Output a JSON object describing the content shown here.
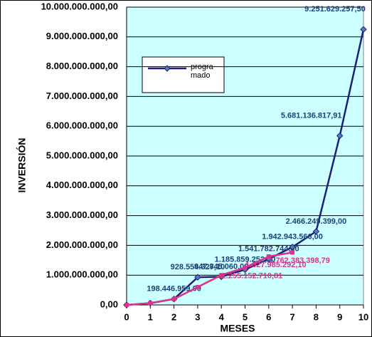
{
  "chart_data": {
    "type": "line",
    "x_label": "MESES",
    "y_label": "INVERSIÓN",
    "x": [
      0,
      1,
      2,
      3,
      4,
      5,
      6,
      7,
      8,
      9,
      10
    ],
    "xlim": [
      0,
      10
    ],
    "xticks": [
      0,
      1,
      2,
      3,
      4,
      5,
      6,
      7,
      8,
      9,
      10
    ],
    "ylim": [
      0,
      10000000000
    ],
    "yticks": [
      {
        "value": 0,
        "label": "0,00"
      },
      {
        "value": 1000000000,
        "label": "1.000.000.000,00"
      },
      {
        "value": 2000000000,
        "label": "2.000.000.000,00"
      },
      {
        "value": 3000000000,
        "label": "3.000.000.000,00"
      },
      {
        "value": 4000000000,
        "label": "4.000.000.000,00"
      },
      {
        "value": 5000000000,
        "label": "5.000.000.000,00"
      },
      {
        "value": 6000000000,
        "label": "6.000.000.000,00"
      },
      {
        "value": 7000000000,
        "label": "7.000.000.000,00"
      },
      {
        "value": 8000000000,
        "label": "8.000.000.000,00"
      },
      {
        "value": 9000000000,
        "label": "9.000.000.000,00"
      },
      {
        "value": 10000000000,
        "label": "10.000.000.000,00"
      }
    ],
    "grid": true,
    "series": [
      {
        "name": "programado",
        "color": "#1f1f7a",
        "values": [
          0,
          60000000,
          198446959.0,
          928554327.1,
          947845060.0,
          1185859252.2,
          1541782744.0,
          1942943566.0,
          2466249399.0,
          5681136817.91,
          9251629257.5
        ],
        "value_labels": [
          null,
          null,
          "198.446.959,00",
          "928.554.327,10",
          "947.845.060,00",
          "1.185.859.252,20",
          "1.541.782.744,00",
          "1.942.943.566,00",
          "2.466.249.399,00",
          "5.681.136.817,91",
          "9.251.629.257,50"
        ]
      },
      {
        "color": "#e0308a",
        "values": [
          0,
          60000000,
          198446959.0,
          600000000,
          1000000000,
          1255152710.81,
          1627985292.1,
          1762383398.79,
          null,
          null,
          null
        ],
        "value_labels": [
          null,
          null,
          null,
          null,
          null,
          "1.255.152.710,81",
          "1.627.985.292,10",
          "1.762.383.398,79",
          null,
          null,
          null
        ]
      }
    ]
  }
}
